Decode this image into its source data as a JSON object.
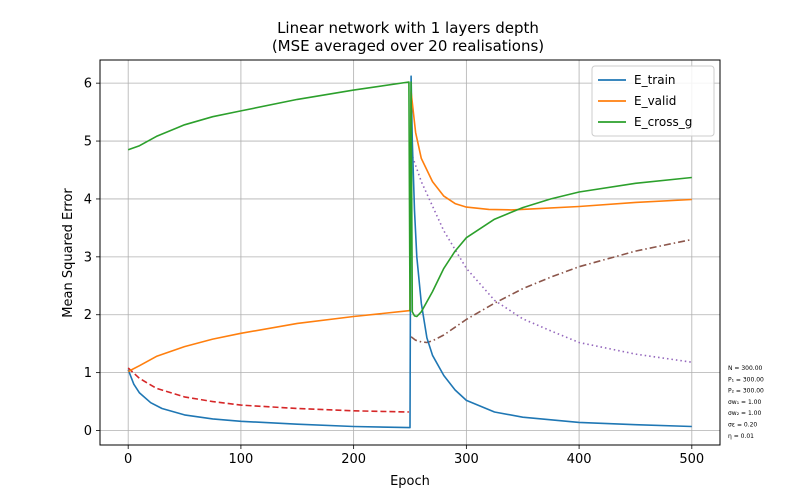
{
  "chart_data": {
    "type": "line",
    "title": "Linear network with 1 layers depth",
    "subtitle": "(MSE averaged over 20 realisations)",
    "xlabel": "Epoch",
    "ylabel": "Mean Squared Error",
    "xlim": [
      -25,
      525
    ],
    "ylim": [
      -0.25,
      6.4
    ],
    "xticks": [
      0,
      100,
      200,
      300,
      400,
      500
    ],
    "yticks": [
      0,
      1,
      2,
      3,
      4,
      5,
      6
    ],
    "grid": true,
    "legend_position": "top-right",
    "series": [
      {
        "name": "E_train",
        "color": "#1f77b4",
        "dash": "solid",
        "x": [
          0,
          5,
          10,
          20,
          30,
          50,
          75,
          100,
          150,
          200,
          249,
          250,
          251,
          252,
          254,
          256,
          260,
          265,
          270,
          280,
          290,
          300,
          325,
          350,
          400,
          450,
          500
        ],
        "y": [
          1.05,
          0.8,
          0.65,
          0.48,
          0.38,
          0.27,
          0.2,
          0.16,
          0.11,
          0.07,
          0.05,
          0.05,
          6.12,
          5.0,
          3.8,
          3.0,
          2.2,
          1.6,
          1.3,
          0.95,
          0.7,
          0.52,
          0.32,
          0.23,
          0.14,
          0.1,
          0.07
        ]
      },
      {
        "name": "E_valid",
        "color": "#ff7f0e",
        "dash": "solid",
        "x": [
          0,
          10,
          25,
          50,
          75,
          100,
          150,
          200,
          249,
          250,
          251,
          255,
          260,
          270,
          280,
          290,
          300,
          320,
          340,
          360,
          400,
          450,
          500
        ],
        "y": [
          1.02,
          1.12,
          1.28,
          1.45,
          1.58,
          1.68,
          1.85,
          1.97,
          2.07,
          2.07,
          5.85,
          5.15,
          4.7,
          4.3,
          4.05,
          3.92,
          3.86,
          3.82,
          3.81,
          3.83,
          3.87,
          3.94,
          3.99
        ]
      },
      {
        "name": "E_cross_g",
        "color": "#2ca02c",
        "dash": "solid",
        "x": [
          0,
          10,
          25,
          50,
          75,
          100,
          150,
          200,
          249,
          250,
          251,
          252,
          254,
          256,
          260,
          270,
          280,
          290,
          300,
          325,
          350,
          375,
          400,
          450,
          500
        ],
        "y": [
          4.85,
          4.92,
          5.08,
          5.28,
          5.42,
          5.52,
          5.72,
          5.88,
          6.02,
          2.07,
          6.02,
          2.05,
          1.98,
          1.97,
          2.05,
          2.4,
          2.8,
          3.1,
          3.33,
          3.65,
          3.85,
          4.0,
          4.12,
          4.27,
          4.37
        ]
      },
      {
        "color": "#d62728",
        "dash": "dashed",
        "x": [
          0,
          10,
          25,
          50,
          75,
          100,
          150,
          200,
          249
        ],
        "y": [
          1.08,
          0.9,
          0.73,
          0.58,
          0.5,
          0.44,
          0.38,
          0.34,
          0.32
        ]
      },
      {
        "color": "#9467bd",
        "dash": "dotted",
        "x": [
          251,
          260,
          280,
          300,
          325,
          350,
          375,
          400,
          450,
          500
        ],
        "y": [
          4.8,
          4.3,
          3.45,
          2.8,
          2.25,
          1.93,
          1.72,
          1.52,
          1.32,
          1.18
        ]
      },
      {
        "color": "#8c564b",
        "dash": "dashdot",
        "x": [
          251,
          255,
          260,
          265,
          270,
          280,
          300,
          325,
          350,
          375,
          400,
          450,
          500
        ],
        "y": [
          1.62,
          1.56,
          1.53,
          1.52,
          1.55,
          1.65,
          1.92,
          2.2,
          2.45,
          2.65,
          2.83,
          3.1,
          3.3
        ]
      }
    ]
  },
  "params": [
    "N = 300.00",
    "P₁ = 300.00",
    "P₂ = 300.00",
    "σw₁ = 1.00",
    "σw₂ = 1.00",
    "σε = 0.20",
    "η = 0.01"
  ]
}
